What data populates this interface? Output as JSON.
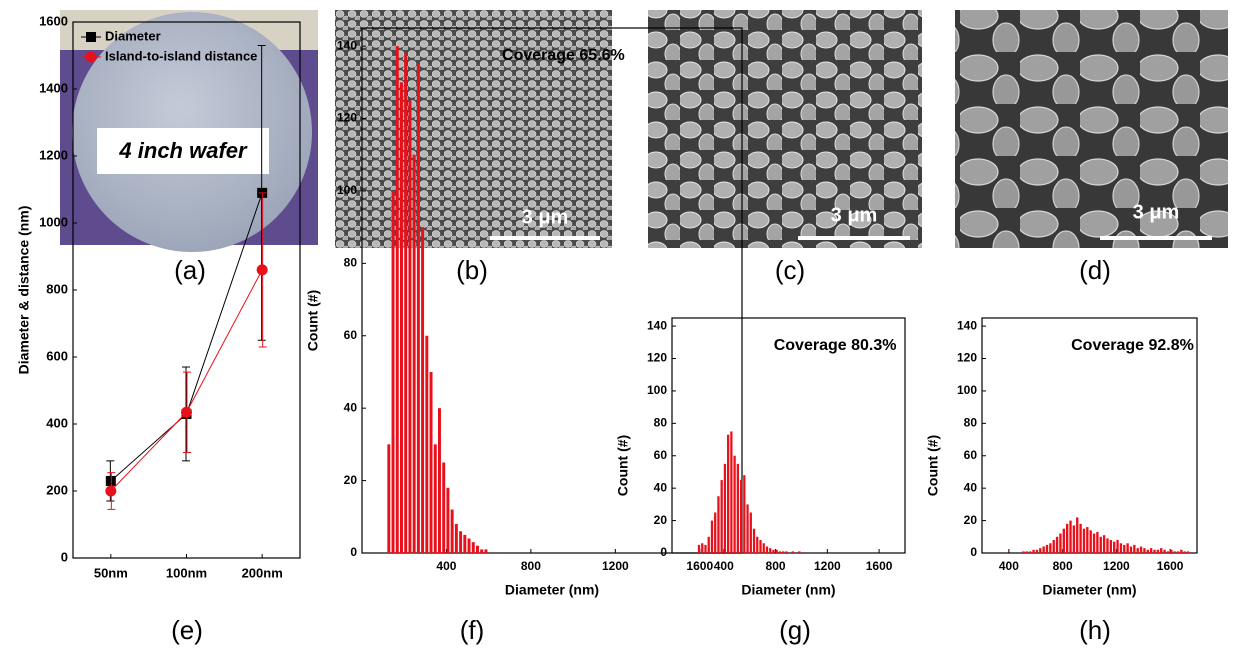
{
  "panels": {
    "labels": [
      "(a)",
      "(b)",
      "(c)",
      "(d)",
      "(e)",
      "(f)",
      "(g)",
      "(h)"
    ],
    "wafer_label": "4 inch wafer",
    "scale_bars": [
      "3 μm",
      "3 μm",
      "3 μm"
    ]
  },
  "chart_data": [
    {
      "type": "line",
      "y_label": "Diameter & distance (nm)",
      "categories": [
        "50nm",
        "100nm",
        "200nm"
      ],
      "ylim": [
        0,
        1600
      ],
      "yticks": [
        0,
        200,
        400,
        600,
        800,
        1000,
        1200,
        1400,
        1600
      ],
      "series": [
        {
          "name": "Diameter",
          "color": "#000000",
          "marker": "square",
          "values": [
            230,
            430,
            1090
          ],
          "errors": [
            60,
            140,
            440
          ]
        },
        {
          "name": "Island-to-island distance",
          "color": "#e8101a",
          "marker": "circle",
          "values": [
            200,
            435,
            860
          ],
          "errors": [
            55,
            120,
            230
          ]
        }
      ]
    },
    {
      "type": "histogram",
      "annotation": "Coverage 65.6%",
      "x_label": "Diameter (nm)",
      "y_label": "Count (#)",
      "color": "#e8101a",
      "xlim": [
        0,
        1800
      ],
      "ylim": [
        0,
        145
      ],
      "xticks": [
        400,
        800,
        1200,
        1600
      ],
      "yticks": [
        0,
        20,
        40,
        60,
        80,
        100,
        120,
        140
      ],
      "bins": [
        120,
        140,
        160,
        180,
        200,
        220,
        240,
        260,
        280,
        300,
        320,
        340,
        360,
        380,
        400,
        420,
        440,
        460,
        480,
        500,
        520,
        540,
        560,
        580,
        600
      ],
      "counts": [
        30,
        100,
        140,
        130,
        138,
        125,
        110,
        135,
        90,
        60,
        50,
        30,
        40,
        25,
        18,
        12,
        8,
        6,
        5,
        4,
        3,
        2,
        1,
        1
      ]
    },
    {
      "type": "histogram",
      "annotation": "Coverage 80.3%",
      "x_label": "Diameter (nm)",
      "y_label": "Count (#)",
      "color": "#e8101a",
      "xlim": [
        0,
        1800
      ],
      "ylim": [
        0,
        145
      ],
      "xticks": [
        400,
        800,
        1200,
        1600
      ],
      "yticks": [
        0,
        20,
        40,
        60,
        80,
        100,
        120,
        140
      ],
      "bins": [
        200,
        225,
        250,
        275,
        300,
        325,
        350,
        375,
        400,
        425,
        450,
        475,
        500,
        525,
        550,
        575,
        600,
        625,
        650,
        675,
        700,
        725,
        750,
        775,
        800,
        825,
        850,
        875,
        900,
        925,
        950,
        975,
        1000
      ],
      "counts": [
        5,
        6,
        5,
        10,
        20,
        25,
        35,
        45,
        55,
        73,
        75,
        60,
        55,
        45,
        48,
        30,
        25,
        15,
        10,
        8,
        6,
        4,
        3,
        2,
        2,
        1,
        1,
        1,
        0,
        1,
        0,
        1
      ]
    },
    {
      "type": "histogram",
      "annotation": "Coverage 92.8%",
      "x_label": "Diameter (nm)",
      "y_label": "Count (#)",
      "color": "#e8101a",
      "xlim": [
        200,
        1800
      ],
      "ylim": [
        0,
        145
      ],
      "xticks": [
        400,
        800,
        1200,
        1600
      ],
      "yticks": [
        0,
        20,
        40,
        60,
        80,
        100,
        120,
        140
      ],
      "bins": [
        500,
        525,
        550,
        575,
        600,
        625,
        650,
        675,
        700,
        725,
        750,
        775,
        800,
        825,
        850,
        875,
        900,
        925,
        950,
        975,
        1000,
        1025,
        1050,
        1075,
        1100,
        1125,
        1150,
        1175,
        1200,
        1225,
        1250,
        1275,
        1300,
        1325,
        1350,
        1375,
        1400,
        1425,
        1450,
        1475,
        1500,
        1525,
        1550,
        1575,
        1600,
        1625,
        1650,
        1675,
        1700,
        1725,
        1750
      ],
      "counts": [
        1,
        1,
        1,
        2,
        2,
        3,
        4,
        5,
        6,
        8,
        10,
        12,
        15,
        18,
        20,
        17,
        22,
        18,
        15,
        16,
        14,
        12,
        13,
        10,
        11,
        9,
        8,
        7,
        8,
        6,
        5,
        6,
        4,
        5,
        3,
        4,
        3,
        2,
        3,
        2,
        2,
        3,
        2,
        1,
        2,
        1,
        1,
        2,
        1,
        1
      ]
    }
  ]
}
